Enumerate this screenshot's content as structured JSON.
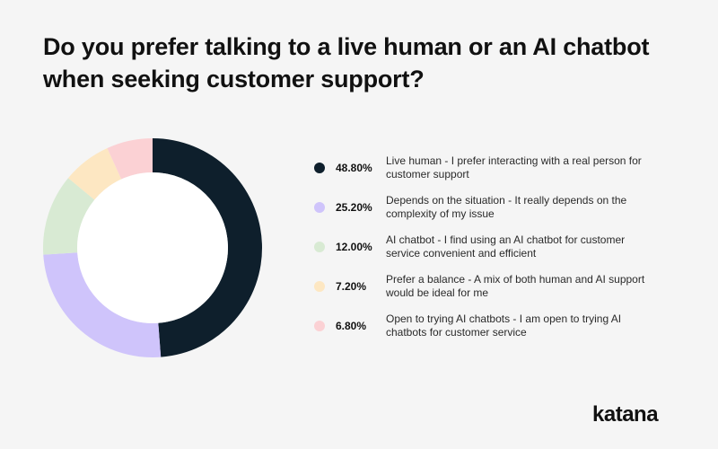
{
  "title": "Do you prefer talking to a live human or an AI chatbot\nwhen seeking customer support?",
  "logo": "katana",
  "chart_data": {
    "type": "pie",
    "donut": true,
    "title": "Do you prefer talking to a live human or an AI chatbot when seeking customer support?",
    "slices": [
      {
        "percent_label": "48.80%",
        "value": 48.8,
        "label": "Live human - I prefer interacting with a real person for customer support",
        "color": "#0e1f2c"
      },
      {
        "percent_label": "25.20%",
        "value": 25.2,
        "label": "Depends on the situation - It really depends on the complexity of my issue",
        "color": "#cfc4fb"
      },
      {
        "percent_label": "12.00%",
        "value": 12.0,
        "label": "AI chatbot - I find using an AI chatbot for customer service convenient and efficient",
        "color": "#d8ead3"
      },
      {
        "percent_label": "7.20%",
        "value": 7.2,
        "label": "Prefer a balance - A mix of both human and AI support would be ideal for me",
        "color": "#fde7c2"
      },
      {
        "percent_label": "6.80%",
        "value": 6.8,
        "label": "Open to trying AI chatbots - I am open to trying AI chatbots for customer service",
        "color": "#fbd1d4"
      }
    ],
    "legend_position": "right"
  }
}
